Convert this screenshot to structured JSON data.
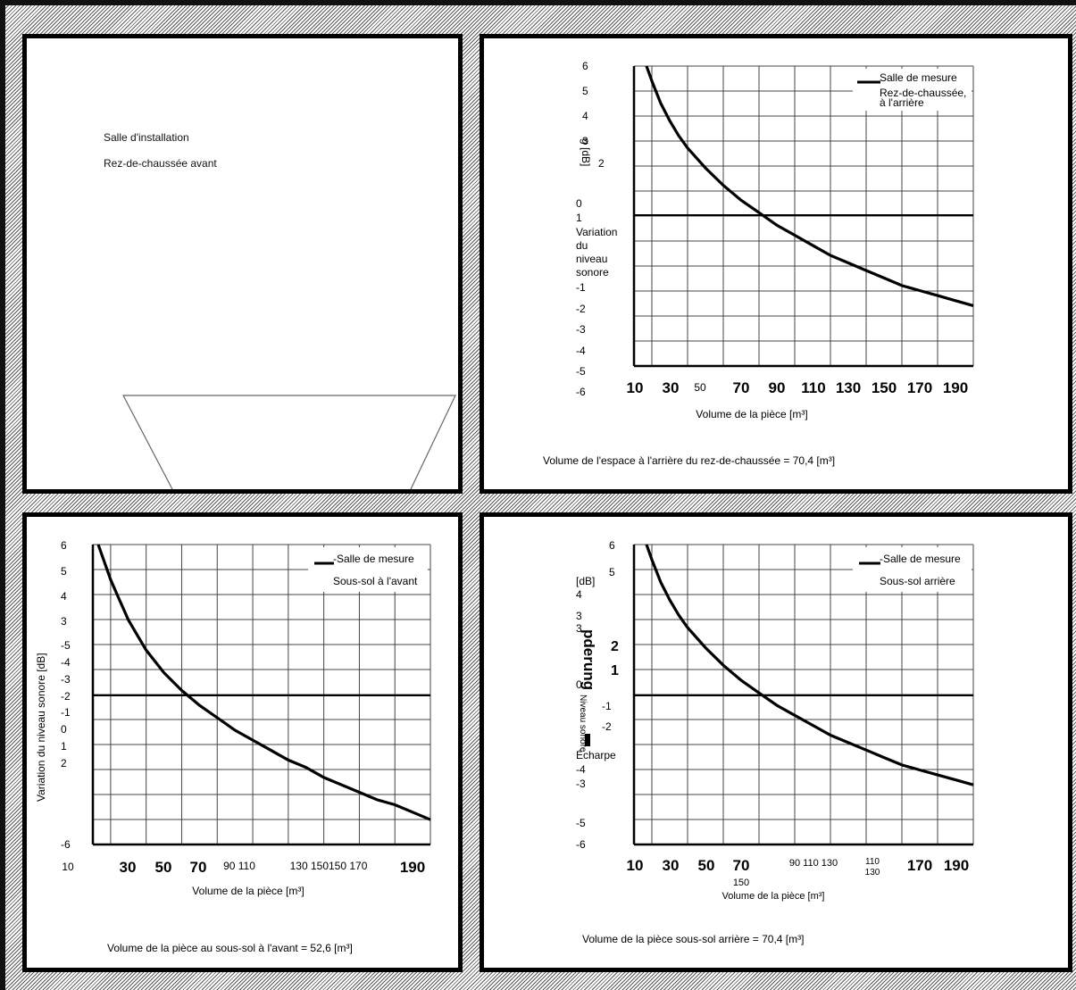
{
  "top_left": {
    "room_label": "Salle d'installation",
    "room_sub": "Rez-de-chaussée avant"
  },
  "top_right": {
    "legend_line1": "Salle de mesure",
    "legend_line2": "Rez-de-chaussée,",
    "legend_line3": "à l'arrière",
    "ylabel_rotated": "g [dB]",
    "ylabel_lines": [
      "Variation",
      "du",
      "niveau",
      "sonore"
    ],
    "xlabel": "Volume de la pièce [m³]",
    "caption": "Volume de l'espace à l'arrière du rez-de-chaussée = 70,4 [m³]",
    "ytick_labels": [
      "6",
      "5",
      "4",
      "3",
      "2",
      "0",
      "1",
      "-1",
      "-2",
      "-3",
      "-4",
      "-5",
      "-6"
    ],
    "xtick_labels": [
      "10",
      "30",
      "50",
      "70",
      "90",
      "110",
      "130",
      "150",
      "170",
      "190"
    ]
  },
  "bottom_left": {
    "legend_line1": "-Salle de mesure",
    "legend_line2": "Sous-sol à l'avant",
    "ylabel": "Variation du niveau sonore [dB]",
    "xlabel": "Volume de la pièce [m³]",
    "caption": "Volume de la pièce au sous-sol à l'avant = 52,6 [m³]",
    "ytick_labels": [
      "6",
      "5",
      "4",
      "3",
      "-5",
      "-4",
      "-3",
      "-2",
      "-1",
      "0",
      "1",
      "2",
      "-6"
    ],
    "xtick_labels": [
      "10",
      "30",
      "50",
      "70",
      "90 110",
      "130 150150 170",
      "190"
    ]
  },
  "bottom_right": {
    "legend_line1": "-Salle de mesure",
    "legend_line2": "Sous-sol arrière",
    "ylabel_bold": "pderung",
    "ylabel_small": "Niveau sonore",
    "ylabel_extra": "Écharpe",
    "xlabel": "Volume de la pièce [m³]",
    "caption": "Volume de la pièce sous-sol arrière = 70,4 [m³]",
    "ytick_labels": [
      "6",
      "5",
      "[dB]",
      "4",
      "3",
      "3",
      "2",
      "1",
      "0",
      "-1",
      "-2",
      "-4",
      "-3",
      "-5",
      "-6"
    ],
    "xtick_labels": [
      "10",
      "30",
      "50",
      "70",
      "150",
      "90 110 130",
      "110",
      "130",
      "170",
      "190"
    ]
  },
  "chart_data": [
    {
      "type": "line",
      "title": "",
      "xlabel": "Volume de la pièce [m³]",
      "ylabel": "g [dB]",
      "xlim": [
        10,
        200
      ],
      "ylim": [
        -6,
        6
      ],
      "grid": true,
      "legend": "top-right",
      "series": [
        {
          "name": "Salle de mesure Rez-de-chaussée, à l'arrière",
          "x": [
            17,
            20,
            25,
            30,
            35,
            40,
            50,
            60,
            70,
            80,
            90,
            100,
            110,
            120,
            130,
            140,
            150,
            160,
            170,
            180,
            190,
            200
          ],
          "y": [
            6.0,
            5.4,
            4.5,
            3.8,
            3.2,
            2.7,
            1.9,
            1.2,
            0.6,
            0.1,
            -0.4,
            -0.8,
            -1.2,
            -1.6,
            -1.9,
            -2.2,
            -2.5,
            -2.8,
            -3.0,
            -3.2,
            -3.4,
            -3.6
          ]
        }
      ]
    },
    {
      "type": "line",
      "title": "",
      "xlabel": "Volume de la pièce [m³]",
      "ylabel": "Variation du niveau sonore [dB]",
      "xlim": [
        10,
        200
      ],
      "ylim": [
        -6,
        6
      ],
      "grid": true,
      "legend": "top-right",
      "series": [
        {
          "name": "Salle de mesure Sous-sol à l'avant",
          "x": [
            13,
            20,
            25,
            30,
            35,
            40,
            50,
            60,
            70,
            80,
            90,
            100,
            110,
            120,
            130,
            140,
            150,
            160,
            170,
            180,
            190,
            200
          ],
          "y": [
            6.0,
            4.6,
            3.8,
            3.0,
            2.4,
            1.8,
            0.9,
            0.2,
            -0.4,
            -0.9,
            -1.4,
            -1.8,
            -2.2,
            -2.6,
            -2.9,
            -3.3,
            -3.6,
            -3.9,
            -4.2,
            -4.4,
            -4.7,
            -5.0
          ]
        }
      ]
    },
    {
      "type": "line",
      "title": "",
      "xlabel": "Volume de la pièce [m³]",
      "ylabel": "Niveau sonore [dB]",
      "xlim": [
        10,
        200
      ],
      "ylim": [
        -6,
        6
      ],
      "grid": true,
      "legend": "top-right",
      "series": [
        {
          "name": "Salle de mesure Sous-sol arrière",
          "x": [
            17,
            20,
            25,
            30,
            35,
            40,
            50,
            60,
            70,
            80,
            90,
            100,
            110,
            120,
            130,
            140,
            150,
            160,
            170,
            180,
            190,
            200
          ],
          "y": [
            6.0,
            5.4,
            4.5,
            3.8,
            3.2,
            2.7,
            1.9,
            1.2,
            0.6,
            0.1,
            -0.4,
            -0.8,
            -1.2,
            -1.6,
            -1.9,
            -2.2,
            -2.5,
            -2.8,
            -3.0,
            -3.2,
            -3.4,
            -3.6
          ]
        }
      ]
    }
  ]
}
